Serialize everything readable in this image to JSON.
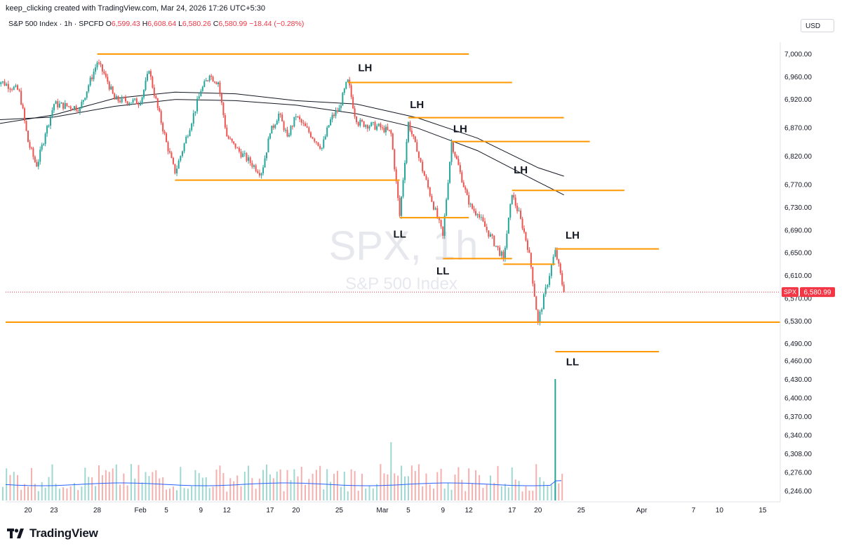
{
  "header": {
    "publish_line": "keep_clicking created with TradingView.com, Mar 24, 2026 17:26 UTC+5:30"
  },
  "symbol_bar": {
    "name": "S&P 500 Index · 1h · SPCFD",
    "open_label": "O",
    "open": "6,599.43",
    "high_label": "H",
    "high": "6,608.64",
    "low_label": "L",
    "low": "6,580.26",
    "close_label": "C",
    "close": "6,580.99",
    "change": "−18.44 (−0.28%)"
  },
  "currency": "USD",
  "watermark": {
    "symbol": "SPX, 1h",
    "name": "S&P 500 Index"
  },
  "brand": {
    "name": "TradingView"
  },
  "chart_data": {
    "type": "candlestick",
    "colors": {
      "up": "#26a69a",
      "down": "#ef5350",
      "level": "#ff9800",
      "ma": "#131722",
      "volume_ma": "#2962ff"
    },
    "y_axis": {
      "ticks": [
        7000,
        6960,
        6920,
        6870,
        6820,
        6770,
        6730,
        6690,
        6650,
        6610,
        6570,
        6530,
        6490,
        6460,
        6430,
        6400,
        6370,
        6340,
        6308,
        6276,
        6246
      ],
      "tick_labels": [
        "7,000.00",
        "6,960.00",
        "6,920.00",
        "6,870.00",
        "6,820.00",
        "6,770.00",
        "6,730.00",
        "6,690.00",
        "6,650.00",
        "6,610.00",
        "6,570.00",
        "6,530.00",
        "6,490.00",
        "6,460.00",
        "6,430.00",
        "6,400.00",
        "6,370.00",
        "6,340.00",
        "6,308.00",
        "6,276.00",
        "6,246.00"
      ]
    },
    "x_axis": {
      "ticks": [
        {
          "label": "20",
          "date": "2026-01-20"
        },
        {
          "label": "23",
          "date": "2026-01-23"
        },
        {
          "label": "28",
          "date": "2026-01-28"
        },
        {
          "label": "Feb",
          "date": "2026-02-02"
        },
        {
          "label": "5",
          "date": "2026-02-05"
        },
        {
          "label": "9",
          "date": "2026-02-09"
        },
        {
          "label": "12",
          "date": "2026-02-12"
        },
        {
          "label": "17",
          "date": "2026-02-17"
        },
        {
          "label": "20",
          "date": "2026-02-20"
        },
        {
          "label": "25",
          "date": "2026-02-25"
        },
        {
          "label": "Mar",
          "date": "2026-03-02"
        },
        {
          "label": "5",
          "date": "2026-03-05"
        },
        {
          "label": "9",
          "date": "2026-03-09"
        },
        {
          "label": "12",
          "date": "2026-03-12"
        },
        {
          "label": "17",
          "date": "2026-03-17"
        },
        {
          "label": "20",
          "date": "2026-03-20"
        },
        {
          "label": "25",
          "date": "2026-03-25"
        },
        {
          "label": "Apr",
          "date": "2026-04-01"
        },
        {
          "label": "7",
          "date": "2026-04-07"
        },
        {
          "label": "10",
          "date": "2026-04-10"
        },
        {
          "label": "15",
          "date": "2026-04-15"
        }
      ]
    },
    "price_path": [
      [
        "2026-01-16",
        6958
      ],
      [
        "2026-01-19",
        6935
      ],
      [
        "2026-01-20",
        6845
      ],
      [
        "2026-01-21",
        6802
      ],
      [
        "2026-01-22",
        6860
      ],
      [
        "2026-01-23",
        6912
      ],
      [
        "2026-01-26",
        6905
      ],
      [
        "2026-01-27",
        6945
      ],
      [
        "2026-01-28",
        6985
      ],
      [
        "2026-01-29",
        6960
      ],
      [
        "2026-01-30",
        6920
      ],
      [
        "2026-02-02",
        6915
      ],
      [
        "2026-02-03",
        6970
      ],
      [
        "2026-02-04",
        6905
      ],
      [
        "2026-02-05",
        6845
      ],
      [
        "2026-02-06",
        6790
      ],
      [
        "2026-02-09",
        6935
      ],
      [
        "2026-02-10",
        6962
      ],
      [
        "2026-02-11",
        6950
      ],
      [
        "2026-02-12",
        6855
      ],
      [
        "2026-02-13",
        6835
      ],
      [
        "2026-02-16",
        6790
      ],
      [
        "2026-02-17",
        6860
      ],
      [
        "2026-02-18",
        6895
      ],
      [
        "2026-02-19",
        6855
      ],
      [
        "2026-02-20",
        6890
      ],
      [
        "2026-02-23",
        6835
      ],
      [
        "2026-02-24",
        6885
      ],
      [
        "2026-02-25",
        6905
      ],
      [
        "2026-02-26",
        6955
      ],
      [
        "2026-02-27",
        6880
      ],
      [
        "2026-03-02",
        6870
      ],
      [
        "2026-03-03",
        6860
      ],
      [
        "2026-03-04",
        6715
      ],
      [
        "2026-03-05",
        6880
      ],
      [
        "2026-03-06",
        6828
      ],
      [
        "2026-03-09",
        6680
      ],
      [
        "2026-03-10",
        6845
      ],
      [
        "2026-03-11",
        6792
      ],
      [
        "2026-03-12",
        6735
      ],
      [
        "2026-03-13",
        6718
      ],
      [
        "2026-03-16",
        6640
      ],
      [
        "2026-03-17",
        6752
      ],
      [
        "2026-03-18",
        6710
      ],
      [
        "2026-03-19",
        6650
      ],
      [
        "2026-03-20",
        6528
      ],
      [
        "2026-03-22",
        6655
      ],
      [
        "2026-03-23",
        6581
      ]
    ],
    "moving_averages": [
      {
        "points": [
          [
            "2026-01-16",
            6876
          ],
          [
            "2026-01-23",
            6893
          ],
          [
            "2026-01-30",
            6922
          ],
          [
            "2026-02-06",
            6933
          ],
          [
            "2026-02-13",
            6930
          ],
          [
            "2026-02-20",
            6918
          ],
          [
            "2026-02-27",
            6912
          ],
          [
            "2026-03-06",
            6888
          ],
          [
            "2026-03-13",
            6852
          ],
          [
            "2026-03-20",
            6800
          ],
          [
            "2026-03-23",
            6785
          ]
        ]
      },
      {
        "points": [
          [
            "2026-01-16",
            6884
          ],
          [
            "2026-01-23",
            6889
          ],
          [
            "2026-01-30",
            6908
          ],
          [
            "2026-02-06",
            6920
          ],
          [
            "2026-02-13",
            6918
          ],
          [
            "2026-02-20",
            6910
          ],
          [
            "2026-02-27",
            6895
          ],
          [
            "2026-03-06",
            6870
          ],
          [
            "2026-03-13",
            6830
          ],
          [
            "2026-03-20",
            6775
          ],
          [
            "2026-03-23",
            6752
          ]
        ]
      }
    ],
    "levels": [
      {
        "price": 7000,
        "from": "2026-01-28",
        "to": "2026-03-12"
      },
      {
        "price": 6950,
        "from": "2026-02-26",
        "to": "2026-03-17"
      },
      {
        "price": 6888,
        "from": "2026-03-05",
        "to": "2026-03-23"
      },
      {
        "price": 6846,
        "from": "2026-03-10",
        "to": "2026-03-26"
      },
      {
        "price": 6778,
        "from": "2026-02-06",
        "to": "2026-03-04"
      },
      {
        "price": 6712,
        "from": "2026-03-04",
        "to": "2026-03-12"
      },
      {
        "price": 6760,
        "from": "2026-03-17",
        "to": "2026-03-30"
      },
      {
        "price": 6640,
        "from": "2026-03-09",
        "to": "2026-03-17"
      },
      {
        "price": 6630,
        "from": "2026-03-16",
        "to": "2026-03-22"
      },
      {
        "price": 6657,
        "from": "2026-03-22",
        "to": "2026-04-03"
      },
      {
        "price": 6528,
        "from": "2026-01-16",
        "to": "2026-04-17"
      },
      {
        "price": 6476,
        "from": "2026-03-22",
        "to": "2026-04-03"
      }
    ],
    "annotations": [
      {
        "text": "LH",
        "date": "2026-02-28",
        "price": 6970
      },
      {
        "text": "LH",
        "date": "2026-03-06",
        "price": 6905
      },
      {
        "text": "LH",
        "date": "2026-03-11",
        "price": 6862
      },
      {
        "text": "LH",
        "date": "2026-03-18",
        "price": 6790
      },
      {
        "text": "LH",
        "date": "2026-03-24",
        "price": 6675
      },
      {
        "text": "LL",
        "date": "2026-03-04",
        "price": 6677
      },
      {
        "text": "LL",
        "date": "2026-03-09",
        "price": 6612
      },
      {
        "text": "LL",
        "date": "2026-03-24",
        "price": 6452
      }
    ],
    "last_price": {
      "symbol": "SPX",
      "value": 6580.99,
      "label": "6,580.99"
    },
    "volume": {
      "spike_date": "2026-03-22",
      "spike_relative": 1.0,
      "typical_relative": 0.22
    }
  }
}
